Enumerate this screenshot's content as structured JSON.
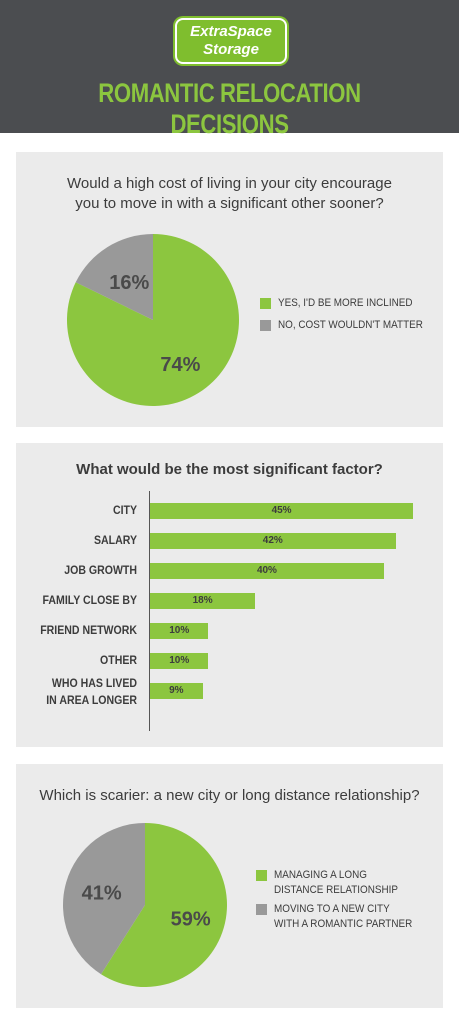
{
  "header": {
    "logo_line1": "ExtraSpace",
    "logo_line2": "Storage",
    "title": "ROMANTIC RELOCATION DECISIONS"
  },
  "colors": {
    "accent": "#8cc63f",
    "gray": "#999999",
    "header_bg": "#4b4d50",
    "panel_bg": "#ebebeb"
  },
  "chart_data": [
    {
      "type": "pie",
      "title": "Would a high cost of living in your city encourage you to move in with a significant other sooner?",
      "slices": [
        {
          "label": "YES, I'D BE MORE INCLINED",
          "value": 74,
          "display": "74%",
          "color": "#8cc63f"
        },
        {
          "label": "NO, COST WOULDN'T MATTER",
          "value": 16,
          "display": "16%",
          "color": "#999999"
        }
      ]
    },
    {
      "type": "bar",
      "title": "What would be the most significant factor?",
      "categories": [
        "CITY",
        "SALARY",
        "JOB GROWTH",
        "FAMILY CLOSE BY",
        "FRIEND NETWORK",
        "OTHER",
        "WHO HAS LIVED\nIN AREA LONGER"
      ],
      "values": [
        45,
        42,
        40,
        18,
        10,
        10,
        9
      ],
      "display": [
        "45%",
        "42%",
        "40%",
        "18%",
        "10%",
        "10%",
        "9%"
      ],
      "xlim": [
        0,
        46
      ]
    },
    {
      "type": "pie",
      "title": "Which is scarier: a new city or long distance relationship?",
      "slices": [
        {
          "label": "MANAGING A LONG\nDISTANCE RELATIONSHIP",
          "value": 59,
          "display": "59%",
          "color": "#8cc63f"
        },
        {
          "label": "MOVING TO A NEW CITY\nWITH A ROMANTIC PARTNER",
          "value": 41,
          "display": "41%",
          "color": "#999999"
        }
      ]
    }
  ]
}
